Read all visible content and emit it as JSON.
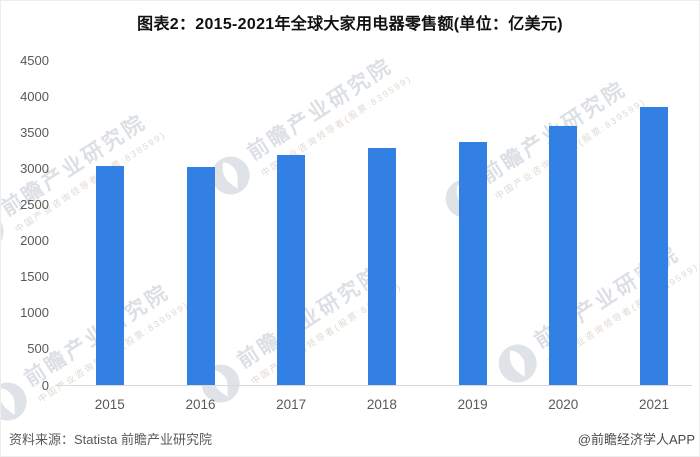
{
  "title": "图表2：2015-2021年全球大家用电器零售额(单位：亿美元)",
  "chart_data": {
    "type": "bar",
    "title": "图表2：2015-2021年全球大家用电器零售额(单位：亿美元)",
    "categories": [
      "2015",
      "2016",
      "2017",
      "2018",
      "2019",
      "2020",
      "2021"
    ],
    "values": [
      3030,
      3020,
      3180,
      3280,
      3360,
      3580,
      3845
    ],
    "xlabel": "",
    "ylabel": "",
    "unit": "亿美元",
    "ylim": [
      0,
      4500
    ],
    "ytick_step": 500,
    "yticks": [
      0,
      500,
      1000,
      1500,
      2000,
      2500,
      3000,
      3500,
      4000,
      4500
    ],
    "bar_color": "#3380E5",
    "grid": false,
    "legend": false
  },
  "footer": {
    "source": "资料来源：Statista 前瞻产业研究院",
    "credit": "@前瞻经济学人APP"
  },
  "watermark": {
    "text": "前瞻产业研究院",
    "subtext": "中国产业咨询领导者(股票:839599)"
  },
  "colors": {
    "bar": "#3380E5",
    "axis_line": "#d9d9d9",
    "tick_text": "#595959",
    "title_text": "#111111"
  }
}
